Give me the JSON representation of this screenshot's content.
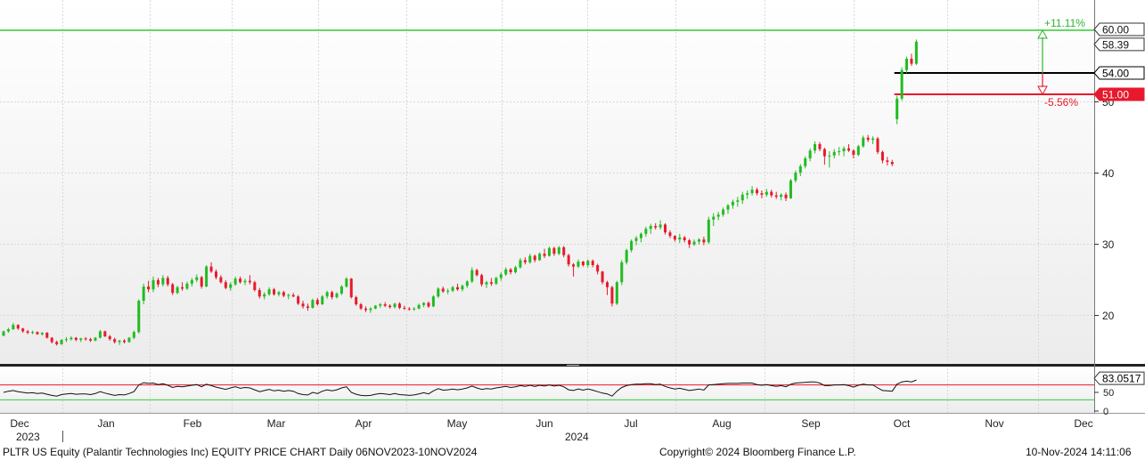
{
  "chart_data": {
    "type": "candlestick",
    "symbol": "PLTR",
    "ylim": [
      13,
      63
    ],
    "y_ticks": [
      20,
      30,
      40,
      50
    ],
    "x_labels": [
      "Dec",
      "Jan",
      "Feb",
      "Mar",
      "Apr",
      "May",
      "Jun",
      "Jul",
      "Aug",
      "Sep",
      "Oct",
      "Nov",
      "Dec"
    ],
    "year_labels": [
      "2023",
      "2024"
    ],
    "levels": {
      "target": "60.00",
      "last": "58.39",
      "entry": "54.00",
      "stop": "51.00",
      "upside_pct": "+11.11%",
      "downside_pct": "-5.56%"
    },
    "rsi": {
      "value": "83.0517",
      "upper": 70,
      "lower": 30,
      "ticks": [
        "50",
        "0"
      ]
    },
    "candles": [
      [
        17.1,
        17.8,
        17.0,
        17.7
      ],
      [
        17.7,
        18.2,
        17.5,
        18.0
      ],
      [
        18.0,
        18.9,
        17.9,
        18.6
      ],
      [
        18.6,
        18.7,
        17.9,
        18.1
      ],
      [
        18.1,
        18.2,
        17.5,
        17.7
      ],
      [
        17.7,
        17.9,
        17.3,
        17.5
      ],
      [
        17.5,
        17.8,
        17.3,
        17.6
      ],
      [
        17.6,
        17.7,
        17.2,
        17.3
      ],
      [
        17.3,
        17.6,
        17.1,
        17.5
      ],
      [
        17.5,
        17.6,
        16.7,
        16.8
      ],
      [
        16.8,
        16.9,
        16.0,
        16.2
      ],
      [
        16.2,
        16.4,
        15.7,
        15.9
      ],
      [
        15.9,
        16.6,
        15.8,
        16.5
      ],
      [
        16.5,
        16.9,
        16.2,
        16.6
      ],
      [
        16.6,
        17.0,
        16.4,
        16.8
      ],
      [
        16.8,
        16.9,
        16.3,
        16.5
      ],
      [
        16.5,
        16.8,
        16.2,
        16.7
      ],
      [
        16.7,
        16.9,
        16.4,
        16.6
      ],
      [
        16.6,
        16.8,
        16.2,
        16.4
      ],
      [
        16.4,
        16.9,
        16.3,
        16.8
      ],
      [
        16.8,
        17.9,
        16.7,
        17.7
      ],
      [
        17.7,
        17.8,
        16.9,
        17.0
      ],
      [
        17.0,
        17.2,
        16.4,
        16.6
      ],
      [
        16.6,
        16.8,
        16.0,
        16.2
      ],
      [
        16.2,
        16.5,
        15.8,
        16.4
      ],
      [
        16.4,
        16.6,
        16.0,
        16.2
      ],
      [
        16.2,
        16.9,
        16.1,
        16.8
      ],
      [
        16.8,
        17.8,
        16.6,
        17.6
      ],
      [
        17.6,
        22.2,
        17.4,
        22.0
      ],
      [
        22.0,
        24.4,
        21.5,
        24.0
      ],
      [
        24.0,
        24.8,
        23.2,
        23.6
      ],
      [
        23.6,
        25.4,
        23.2,
        24.9
      ],
      [
        24.9,
        25.2,
        23.9,
        24.3
      ],
      [
        24.3,
        25.6,
        24.0,
        25.2
      ],
      [
        25.2,
        25.5,
        24.0,
        24.3
      ],
      [
        24.3,
        24.5,
        22.8,
        23.1
      ],
      [
        23.1,
        24.1,
        22.9,
        23.9
      ],
      [
        23.9,
        24.6,
        23.4,
        23.7
      ],
      [
        23.7,
        24.7,
        23.5,
        24.4
      ],
      [
        24.4,
        25.2,
        24.0,
        24.9
      ],
      [
        24.9,
        25.7,
        24.6,
        25.3
      ],
      [
        25.3,
        25.5,
        23.7,
        24.0
      ],
      [
        24.0,
        27.0,
        23.9,
        26.8
      ],
      [
        26.8,
        27.4,
        25.9,
        26.1
      ],
      [
        26.1,
        26.4,
        25.0,
        25.3
      ],
      [
        25.3,
        25.6,
        24.4,
        24.6
      ],
      [
        24.6,
        24.9,
        23.6,
        23.8
      ],
      [
        23.8,
        24.6,
        23.4,
        24.3
      ],
      [
        24.3,
        25.4,
        24.1,
        25.1
      ],
      [
        25.1,
        25.4,
        24.4,
        24.6
      ],
      [
        24.6,
        25.1,
        24.2,
        24.8
      ],
      [
        24.8,
        25.6,
        24.3,
        24.6
      ],
      [
        24.6,
        24.8,
        23.3,
        23.5
      ],
      [
        23.5,
        23.8,
        22.3,
        22.6
      ],
      [
        22.6,
        23.2,
        22.2,
        22.9
      ],
      [
        22.9,
        23.9,
        22.7,
        23.6
      ],
      [
        23.6,
        23.8,
        22.7,
        22.9
      ],
      [
        22.9,
        23.4,
        22.6,
        23.2
      ],
      [
        23.2,
        23.4,
        22.5,
        22.7
      ],
      [
        22.7,
        23.0,
        22.2,
        22.8
      ],
      [
        22.8,
        23.1,
        22.5,
        22.6
      ],
      [
        22.6,
        22.8,
        21.4,
        21.6
      ],
      [
        21.6,
        22.0,
        20.9,
        21.2
      ],
      [
        21.2,
        21.6,
        20.6,
        21.0
      ],
      [
        21.0,
        22.3,
        20.9,
        22.1
      ],
      [
        22.1,
        22.4,
        21.3,
        21.5
      ],
      [
        21.5,
        22.8,
        21.4,
        22.6
      ],
      [
        22.6,
        23.4,
        22.3,
        23.2
      ],
      [
        23.2,
        23.4,
        22.2,
        22.5
      ],
      [
        22.5,
        23.2,
        22.3,
        23.0
      ],
      [
        23.0,
        24.2,
        22.8,
        24.0
      ],
      [
        24.0,
        25.3,
        23.8,
        25.1
      ],
      [
        25.1,
        25.2,
        22.3,
        22.5
      ],
      [
        22.5,
        22.7,
        21.3,
        21.5
      ],
      [
        21.5,
        21.7,
        20.7,
        20.9
      ],
      [
        20.9,
        21.2,
        20.4,
        20.7
      ],
      [
        20.7,
        21.1,
        20.3,
        20.9
      ],
      [
        20.9,
        21.4,
        20.8,
        21.3
      ],
      [
        21.3,
        21.7,
        21.0,
        21.5
      ],
      [
        21.5,
        21.8,
        21.1,
        21.3
      ],
      [
        21.3,
        21.5,
        20.9,
        21.1
      ],
      [
        21.1,
        21.7,
        20.9,
        21.6
      ],
      [
        21.6,
        21.8,
        20.8,
        21.0
      ],
      [
        21.0,
        21.3,
        20.7,
        20.9
      ],
      [
        20.9,
        21.1,
        20.6,
        20.8
      ],
      [
        20.8,
        21.1,
        20.6,
        20.9
      ],
      [
        20.9,
        21.6,
        20.8,
        21.4
      ],
      [
        21.4,
        21.8,
        21.1,
        21.7
      ],
      [
        21.7,
        21.9,
        21.0,
        21.2
      ],
      [
        21.2,
        22.8,
        21.1,
        22.6
      ],
      [
        22.6,
        23.9,
        22.4,
        23.7
      ],
      [
        23.7,
        24.0,
        23.1,
        23.3
      ],
      [
        23.3,
        23.7,
        22.9,
        23.4
      ],
      [
        23.4,
        24.1,
        23.2,
        23.9
      ],
      [
        23.9,
        24.4,
        23.4,
        23.6
      ],
      [
        23.6,
        24.3,
        23.3,
        24.1
      ],
      [
        24.1,
        24.9,
        23.8,
        24.7
      ],
      [
        24.7,
        26.7,
        24.5,
        26.3
      ],
      [
        26.3,
        26.5,
        25.4,
        25.6
      ],
      [
        25.6,
        25.8,
        24.0,
        24.3
      ],
      [
        24.3,
        24.8,
        23.8,
        24.6
      ],
      [
        24.6,
        25.2,
        24.1,
        24.4
      ],
      [
        24.4,
        25.4,
        24.2,
        25.2
      ],
      [
        25.2,
        26.0,
        24.8,
        25.7
      ],
      [
        25.7,
        26.7,
        25.5,
        26.4
      ],
      [
        26.4,
        26.6,
        25.7,
        26.0
      ],
      [
        26.0,
        26.9,
        25.8,
        26.7
      ],
      [
        26.7,
        28.0,
        26.5,
        27.7
      ],
      [
        27.7,
        28.1,
        27.1,
        27.4
      ],
      [
        27.4,
        28.6,
        27.2,
        28.3
      ],
      [
        28.3,
        28.5,
        27.4,
        27.7
      ],
      [
        27.7,
        28.8,
        27.6,
        28.6
      ],
      [
        28.6,
        29.3,
        28.0,
        28.3
      ],
      [
        28.3,
        29.6,
        28.2,
        29.4
      ],
      [
        29.4,
        29.6,
        28.3,
        28.6
      ],
      [
        28.6,
        29.7,
        28.4,
        29.5
      ],
      [
        29.5,
        29.7,
        28.1,
        28.4
      ],
      [
        28.4,
        28.6,
        26.8,
        27.1
      ],
      [
        27.1,
        27.3,
        25.4,
        26.8
      ],
      [
        26.8,
        27.8,
        26.6,
        27.5
      ],
      [
        27.5,
        27.6,
        26.8,
        27.0
      ],
      [
        27.0,
        27.8,
        26.7,
        27.6
      ],
      [
        27.6,
        27.8,
        26.7,
        27.0
      ],
      [
        27.0,
        27.2,
        25.7,
        26.1
      ],
      [
        26.1,
        26.2,
        24.3,
        24.6
      ],
      [
        24.6,
        24.8,
        22.8,
        23.9
      ],
      [
        23.9,
        24.1,
        21.2,
        21.6
      ],
      [
        21.6,
        24.8,
        21.4,
        24.6
      ],
      [
        24.6,
        27.7,
        24.2,
        27.4
      ],
      [
        27.4,
        29.3,
        27.1,
        29.1
      ],
      [
        29.1,
        30.6,
        28.8,
        30.4
      ],
      [
        30.4,
        31.1,
        29.8,
        30.8
      ],
      [
        30.8,
        31.6,
        30.2,
        31.4
      ],
      [
        31.4,
        32.4,
        31.0,
        32.1
      ],
      [
        32.1,
        32.8,
        31.4,
        32.5
      ],
      [
        32.5,
        32.9,
        32.0,
        32.3
      ],
      [
        32.3,
        33.3,
        32.0,
        32.7
      ],
      [
        32.7,
        32.9,
        31.3,
        31.6
      ],
      [
        31.6,
        31.9,
        30.8,
        31.1
      ],
      [
        31.1,
        31.2,
        30.3,
        30.6
      ],
      [
        30.6,
        31.4,
        30.1,
        30.9
      ],
      [
        30.9,
        31.1,
        30.2,
        30.5
      ],
      [
        30.5,
        30.7,
        29.4,
        29.9
      ],
      [
        29.9,
        30.6,
        29.7,
        30.3
      ],
      [
        30.3,
        30.8,
        29.9,
        30.6
      ],
      [
        30.6,
        31.0,
        29.8,
        30.2
      ],
      [
        30.2,
        33.8,
        30.0,
        33.4
      ],
      [
        33.4,
        34.3,
        32.5,
        33.8
      ],
      [
        33.8,
        34.5,
        33.3,
        34.1
      ],
      [
        34.1,
        35.1,
        33.8,
        34.8
      ],
      [
        34.8,
        35.6,
        34.2,
        35.4
      ],
      [
        35.4,
        36.2,
        34.9,
        35.9
      ],
      [
        35.9,
        36.6,
        35.2,
        36.1
      ],
      [
        36.1,
        37.3,
        35.6,
        36.9
      ],
      [
        36.9,
        37.5,
        36.3,
        37.1
      ],
      [
        37.1,
        38.1,
        36.8,
        37.6
      ],
      [
        37.6,
        37.9,
        36.8,
        37.1
      ],
      [
        37.1,
        37.5,
        36.4,
        36.9
      ],
      [
        36.9,
        37.7,
        36.6,
        37.3
      ],
      [
        37.3,
        37.6,
        36.5,
        36.8
      ],
      [
        36.8,
        37.3,
        36.3,
        36.6
      ],
      [
        36.6,
        37.1,
        36.1,
        36.9
      ],
      [
        36.9,
        37.2,
        36.0,
        36.4
      ],
      [
        36.4,
        39.1,
        36.3,
        38.9
      ],
      [
        38.9,
        40.3,
        38.6,
        40.0
      ],
      [
        40.0,
        41.2,
        39.5,
        40.9
      ],
      [
        40.9,
        42.3,
        40.6,
        42.0
      ],
      [
        42.0,
        43.4,
        41.6,
        43.1
      ],
      [
        43.1,
        44.4,
        42.7,
        44.0
      ],
      [
        44.0,
        44.3,
        43.0,
        43.3
      ],
      [
        43.3,
        43.5,
        41.1,
        42.3
      ],
      [
        42.3,
        43.0,
        40.7,
        42.4
      ],
      [
        42.4,
        43.3,
        42.0,
        42.9
      ],
      [
        42.9,
        43.6,
        42.4,
        43.0
      ],
      [
        43.0,
        43.7,
        42.3,
        43.4
      ],
      [
        43.4,
        44.0,
        42.9,
        43.1
      ],
      [
        43.1,
        43.3,
        42.0,
        42.5
      ],
      [
        42.5,
        43.9,
        42.3,
        43.7
      ],
      [
        43.7,
        45.2,
        43.5,
        44.9
      ],
      [
        44.9,
        45.3,
        44.3,
        44.6
      ],
      [
        44.6,
        45.1,
        44.0,
        44.8
      ],
      [
        44.8,
        45.0,
        42.6,
        42.9
      ],
      [
        42.9,
        43.1,
        41.3,
        41.7
      ],
      [
        41.7,
        42.2,
        41.0,
        41.5
      ],
      [
        41.5,
        41.8,
        40.9,
        41.2
      ],
      [
        47.5,
        50.8,
        46.8,
        50.4
      ],
      [
        50.4,
        54.8,
        50.1,
        54.4
      ],
      [
        54.4,
        56.3,
        54.0,
        56.0
      ],
      [
        56.0,
        56.7,
        55.0,
        55.3
      ],
      [
        55.3,
        58.7,
        55.1,
        58.4
      ]
    ],
    "rsi_series": [
      50,
      53,
      55,
      52,
      50,
      48,
      49,
      47,
      48,
      45,
      42,
      40,
      44,
      46,
      47,
      45,
      46,
      46,
      44,
      47,
      52,
      48,
      45,
      42,
      44,
      43,
      47,
      52,
      70,
      76,
      74,
      75,
      71,
      73,
      69,
      63,
      66,
      65,
      67,
      69,
      71,
      65,
      72,
      68,
      64,
      61,
      58,
      62,
      65,
      61,
      63,
      62,
      57,
      52,
      55,
      58,
      54,
      56,
      53,
      55,
      53,
      47,
      44,
      43,
      50,
      47,
      53,
      57,
      54,
      57,
      62,
      65,
      50,
      45,
      42,
      41,
      42,
      45,
      47,
      46,
      44,
      47,
      44,
      43,
      42,
      43,
      46,
      49,
      46,
      54,
      60,
      56,
      57,
      59,
      57,
      59,
      62,
      67,
      62,
      58,
      60,
      59,
      62,
      64,
      66,
      63,
      65,
      68,
      66,
      69,
      66,
      69,
      67,
      70,
      67,
      69,
      65,
      57,
      55,
      59,
      56,
      59,
      56,
      52,
      48,
      46,
      40,
      53,
      63,
      68,
      71,
      72,
      72,
      73,
      73,
      71,
      72,
      66,
      62,
      59,
      61,
      58,
      55,
      57,
      59,
      56,
      70,
      71,
      72,
      73,
      74,
      74,
      74,
      75,
      75,
      75,
      71,
      69,
      71,
      68,
      66,
      68,
      65,
      72,
      75,
      76,
      77,
      78,
      78,
      75,
      68,
      68,
      70,
      70,
      71,
      68,
      64,
      69,
      72,
      70,
      70,
      62,
      55,
      54,
      53,
      72,
      78,
      80,
      78,
      83
    ]
  },
  "footer": {
    "title": "PLTR US Equity (Palantir Technologies Inc) EQUITY PRICE CHART  Daily 06NOV2023-10NOV2024",
    "copyright": "Copyright© 2024 Bloomberg Finance L.P.",
    "timestamp": "10-Nov-2024 14:11:06"
  },
  "colors": {
    "up": "#22bb22",
    "down": "#e8192c",
    "target_line": "#33cc33",
    "stop_line": "#e8192c",
    "entry_line": "#000000",
    "grid": "#d8d8d8",
    "upside_text": "#2fb52f",
    "downside_text": "#e8192c"
  }
}
